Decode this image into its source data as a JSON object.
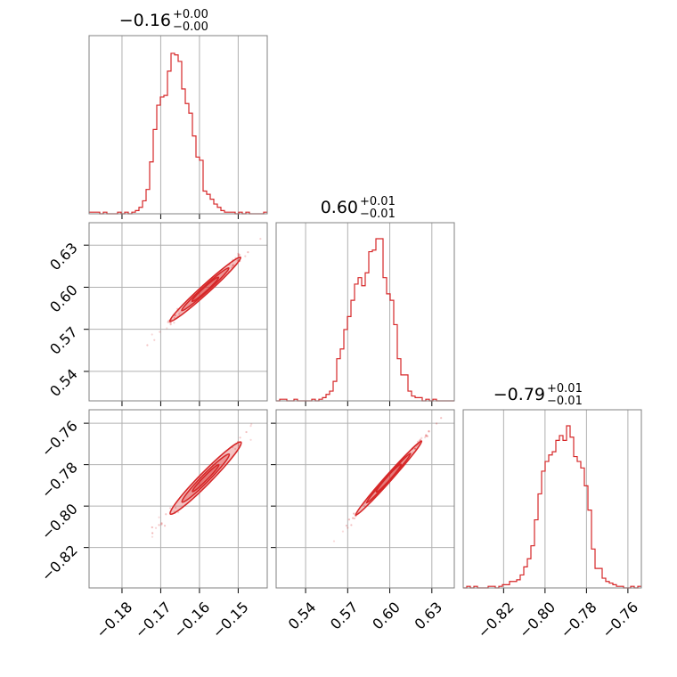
{
  "chart_data": {
    "type": "corner",
    "color": "#d62728",
    "params": [
      {
        "title": {
          "median": "−0.16",
          "plus": "+0.00",
          "minus": "−0.00"
        },
        "range": [
          -0.1885,
          -0.1425
        ],
        "ticks": [
          -0.18,
          -0.17,
          -0.16,
          -0.15
        ],
        "tick_labels": [
          "−0.18",
          "−0.17",
          "−0.16",
          "−0.15"
        ],
        "hist_edges_start": -0.1885,
        "hist_bin_width": 0.00092,
        "hist_values": [
          0.01,
          0.01,
          0.01,
          0.0,
          0.01,
          0.0,
          0.0,
          0.0,
          0.01,
          0.0,
          0.01,
          0.0,
          0.01,
          0.02,
          0.04,
          0.08,
          0.15,
          0.32,
          0.52,
          0.67,
          0.72,
          0.73,
          0.88,
          0.99,
          0.98,
          0.94,
          0.77,
          0.68,
          0.62,
          0.48,
          0.35,
          0.33,
          0.14,
          0.12,
          0.09,
          0.06,
          0.04,
          0.02,
          0.01,
          0.01,
          0.01,
          0.0,
          0.01,
          0.0,
          0.01,
          0.0,
          0.0,
          0.0,
          0.0,
          0.01
        ]
      },
      {
        "title": {
          "median": "0.60",
          "plus": "+0.01",
          "minus": "−0.01"
        },
        "range": [
          0.519,
          0.646
        ],
        "ticks": [
          0.54,
          0.57,
          0.6,
          0.63
        ],
        "tick_labels": [
          "0.54",
          "0.57",
          "0.60",
          "0.63"
        ],
        "hist_edges_start": 0.519,
        "hist_bin_width": 0.00254,
        "hist_values": [
          0.0,
          0.01,
          0.01,
          0.0,
          0.0,
          0.01,
          0.0,
          0.0,
          0.0,
          0.0,
          0.01,
          0.0,
          0.01,
          0.02,
          0.04,
          0.06,
          0.12,
          0.26,
          0.32,
          0.44,
          0.52,
          0.62,
          0.72,
          0.76,
          0.71,
          0.79,
          0.92,
          0.93,
          1.0,
          1.0,
          0.76,
          0.66,
          0.62,
          0.47,
          0.26,
          0.16,
          0.16,
          0.06,
          0.03,
          0.02,
          0.02,
          0.0,
          0.01,
          0.0,
          0.01,
          0.0,
          0.0,
          0.0,
          0.0,
          0.0
        ]
      },
      {
        "title": {
          "median": "−0.79",
          "plus": "+0.01",
          "minus": "−0.01"
        },
        "range": [
          -0.8395,
          -0.7535
        ],
        "ticks": [
          -0.82,
          -0.8,
          -0.78,
          -0.76
        ],
        "tick_labels": [
          "−0.82",
          "−0.80",
          "−0.78",
          "−0.76"
        ],
        "hist_edges_start": -0.8395,
        "hist_bin_width": 0.00172,
        "hist_values": [
          0.0,
          0.01,
          0.0,
          0.01,
          0.0,
          0.0,
          0.0,
          0.01,
          0.01,
          0.0,
          0.01,
          0.02,
          0.02,
          0.04,
          0.04,
          0.05,
          0.08,
          0.13,
          0.18,
          0.26,
          0.42,
          0.58,
          0.72,
          0.78,
          0.82,
          0.84,
          0.91,
          0.94,
          0.91,
          1.0,
          0.93,
          0.81,
          0.78,
          0.74,
          0.63,
          0.48,
          0.24,
          0.12,
          0.12,
          0.06,
          0.04,
          0.03,
          0.02,
          0.01,
          0.01,
          0.0,
          0.0,
          0.01,
          0.0,
          0.01
        ]
      }
    ],
    "pairs": [
      {
        "x": 0,
        "y": 1,
        "center": [
          -0.1585,
          0.5985
        ],
        "slope": 2.5,
        "sd_x": 0.0038,
        "width": 0.0012
      },
      {
        "x": 0,
        "y": 2,
        "center": [
          -0.1584,
          -0.7865
        ],
        "slope": 1.9,
        "sd_x": 0.0038,
        "width": 0.0011
      },
      {
        "x": 1,
        "y": 2,
        "center": [
          0.5992,
          -0.7865
        ],
        "slope": 0.76,
        "sd_x": 0.0098,
        "width": 0.0006
      }
    ],
    "grid": true
  }
}
